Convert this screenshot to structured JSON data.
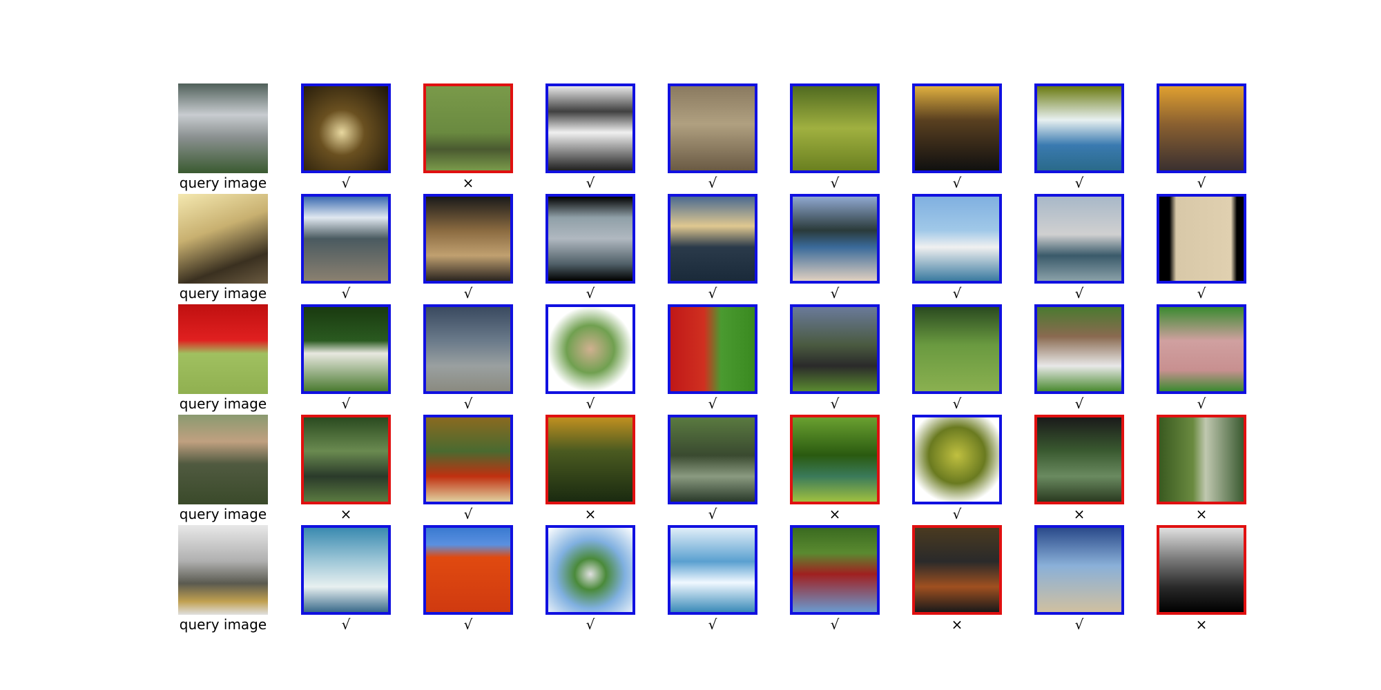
{
  "query_label": "query image",
  "marks": {
    "correct": "√",
    "wrong": "×"
  },
  "colors": {
    "correct_border": "#1010e0",
    "wrong_border": "#e01010"
  },
  "rows": [
    {
      "query": {
        "bg": "linear-gradient(180deg,#50605a 0%,#c8ccd0 35%,#8a9090 60%,#3a5a30 100%)"
      },
      "results": [
        {
          "correct": true,
          "bg": "radial-gradient(circle at 45% 55%,#e8d8a0 0%,#6a5020 35%,#1e1608 100%)"
        },
        {
          "correct": false,
          "bg": "linear-gradient(180deg,#7a9a4a 0%,#6a8a40 55%,#4a5a30 75%,#7a9a4a 100%)"
        },
        {
          "correct": true,
          "bg": "linear-gradient(180deg,#e8e8e8 0%,#404040 30%,#f0f0f0 55%,#202020 100%)"
        },
        {
          "correct": true,
          "bg": "linear-gradient(180deg,#8a7a60 0%,#b0a080 45%,#6a5a44 100%)"
        },
        {
          "correct": true,
          "bg": "linear-gradient(180deg,#506a20 0%,#a0b040 50%,#6a8020 100%)"
        },
        {
          "correct": true,
          "bg": "linear-gradient(180deg,#e0b040 0%,#5a4020 40%,#101010 100%)"
        },
        {
          "correct": true,
          "bg": "linear-gradient(180deg,#6a7a10 0%,#e8f0f0 40%,#3a7ab0 70%,#2a6a8a 100%)"
        },
        {
          "correct": true,
          "bg": "linear-gradient(180deg,#e0a030 0%,#8a6030 45%,#3a3030 100%)"
        }
      ]
    },
    {
      "query": {
        "bg": "linear-gradient(160deg,#f4e8b0 0%,#c8b070 40%,#3a3020 75%,#6a5a40 100%)"
      },
      "results": [
        {
          "correct": true,
          "bg": "linear-gradient(180deg,#3a6ab0 0%,#e0e8f0 25%,#4a5a60 50%,#8a8070 100%)"
        },
        {
          "correct": true,
          "bg": "linear-gradient(180deg,#1a1a1a 0%,#8a6a40 40%,#c0a070 70%,#2a2420 100%)"
        },
        {
          "correct": true,
          "bg": "linear-gradient(180deg,#000000 0%,#90a0a8 25%,#b0b8c0 50%,#506068 80%,#000000 100%)"
        },
        {
          "correct": true,
          "bg": "linear-gradient(180deg,#4a6a90 0%,#e0c890 35%,#2a3a4a 60%,#1a2a3a 100%)"
        },
        {
          "correct": true,
          "bg": "linear-gradient(180deg,#90a8d0 0%,#2a3a3a 40%,#3a6a9a 60%,#e0d0c0 100%)"
        },
        {
          "correct": true,
          "bg": "linear-gradient(180deg,#80b0e0 0%,#a0c8e8 40%,#f0f0f0 60%,#3a7aa0 100%)"
        },
        {
          "correct": true,
          "bg": "linear-gradient(180deg,#a8b8c8 0%,#d0d0d0 45%,#3a5a6a 70%,#8aa0a8 100%)"
        },
        {
          "correct": true,
          "bg": "linear-gradient(90deg,#000000 0%,#000000 12%,#d8c8a8 20%,#e0d0b0 85%,#000000 92%)"
        }
      ]
    },
    {
      "query": {
        "bg": "linear-gradient(180deg,#c01010 0%,#e02020 40%,#a0c060 55%,#90b050 100%)"
      },
      "results": [
        {
          "correct": true,
          "bg": "linear-gradient(180deg,#1a3a10 0%,#2a5a20 40%,#e8e8e0 55%,#4a7a30 100%)"
        },
        {
          "correct": true,
          "bg": "linear-gradient(180deg,#3a4a60 0%,#6a7a8a 40%,#9aa0a0 70%,#8a8a80 100%)"
        },
        {
          "correct": true,
          "bg": "radial-gradient(circle at 50% 50%,#d0b090 0%,#70a050 40%,#ffffff 72%)"
        },
        {
          "correct": true,
          "bg": "linear-gradient(90deg,#c01818 0%,#d03020 40%,#4a9a30 60%,#3a8a20 100%)"
        },
        {
          "correct": true,
          "bg": "linear-gradient(180deg,#6a7a9a 0%,#4a5a40 45%,#2a2a2a 70%,#5a8a30 100%)"
        },
        {
          "correct": true,
          "bg": "linear-gradient(180deg,#2a4a20 0%,#6a9a40 45%,#8ab050 100%)"
        },
        {
          "correct": true,
          "bg": "linear-gradient(180deg,#4a7a30 0%,#8a6a50 35%,#e8e8e8 70%,#4a8a30 100%)"
        },
        {
          "correct": true,
          "bg": "linear-gradient(180deg,#3a8a30 0%,#d0a0a0 40%,#c89090 75%,#3a8a30 100%)"
        }
      ]
    },
    {
      "query": {
        "bg": "linear-gradient(180deg,#8a9a70 0%,#c0a080 30%,#505a40 55%,#3a4a2a 100%)"
      },
      "results": [
        {
          "correct": false,
          "bg": "linear-gradient(180deg,#2a4a20 0%,#6a8a50 40%,#2a3a2a 70%,#5a7a40 100%)"
        },
        {
          "correct": true,
          "bg": "linear-gradient(180deg,#8a6a20 0%,#4a6a30 40%,#c03010 70%,#e0d0a0 100%)"
        },
        {
          "correct": false,
          "bg": "linear-gradient(180deg,#c09020 0%,#4a5a20 40%,#1a2a10 100%)"
        },
        {
          "correct": true,
          "bg": "linear-gradient(180deg,#5a7a40 0%,#3a4a30 45%,#8a9a80 70%,#2a3a2a 100%)"
        },
        {
          "correct": false,
          "bg": "linear-gradient(180deg,#6aa030 0%,#2a5a10 45%,#3a7a5a 70%,#a0c040 100%)"
        },
        {
          "correct": true,
          "bg": "radial-gradient(circle at 50% 45%,#c0c040 0%,#6a7a20 45%,#ffffff 78%)"
        },
        {
          "correct": false,
          "bg": "linear-gradient(180deg,#1a1a1a 0%,#3a5a30 40%,#6a8a60 70%,#2a3a20 100%)"
        },
        {
          "correct": false,
          "bg": "linear-gradient(90deg,#3a5a20 0%,#6a8a40 40%,#c0c8b0 55%,#3a5a30 100%)"
        }
      ]
    },
    {
      "query": {
        "bg": "linear-gradient(180deg,#e8e8e8 0%,#b0b0b0 40%,#5a5a50 65%,#c0a050 85%,#e0e0e0 100%)"
      },
      "results": [
        {
          "correct": true,
          "bg": "linear-gradient(180deg,#3a8ab0 0%,#a0c8d8 40%,#e8f0f0 70%,#3a6a8a 100%)"
        },
        {
          "correct": true,
          "bg": "linear-gradient(180deg,#3a7ad0 0%,#5a90e0 20%,#e04a10 35%,#d03a10 100%)"
        },
        {
          "correct": true,
          "bg": "radial-gradient(circle at 50% 55%,#e0e0e0 0%,#4a8a3a 25%,#80b0e0 55%,#ffffff 100%)"
        },
        {
          "correct": true,
          "bg": "linear-gradient(180deg,#e0eef8 0%,#5aa0d0 40%,#f0f8ff 65%,#3a8ab8 100%)"
        },
        {
          "correct": true,
          "bg": "linear-gradient(180deg,#3a6a20 0%,#5a8a30 30%,#a02020 55%,#6a9ad0 100%)"
        },
        {
          "correct": false,
          "bg": "linear-gradient(180deg,#4a3a20 0%,#2a2a2a 40%,#a05020 70%,#1a1a1a 100%)"
        },
        {
          "correct": true,
          "bg": "linear-gradient(180deg,#2a4a8a 0%,#8ab0d8 45%,#d0c0a0 100%)"
        },
        {
          "correct": false,
          "bg": "linear-gradient(180deg,#e0e0e0 0%,#808080 35%,#2a2a2a 70%,#000000 100%)"
        }
      ]
    }
  ]
}
